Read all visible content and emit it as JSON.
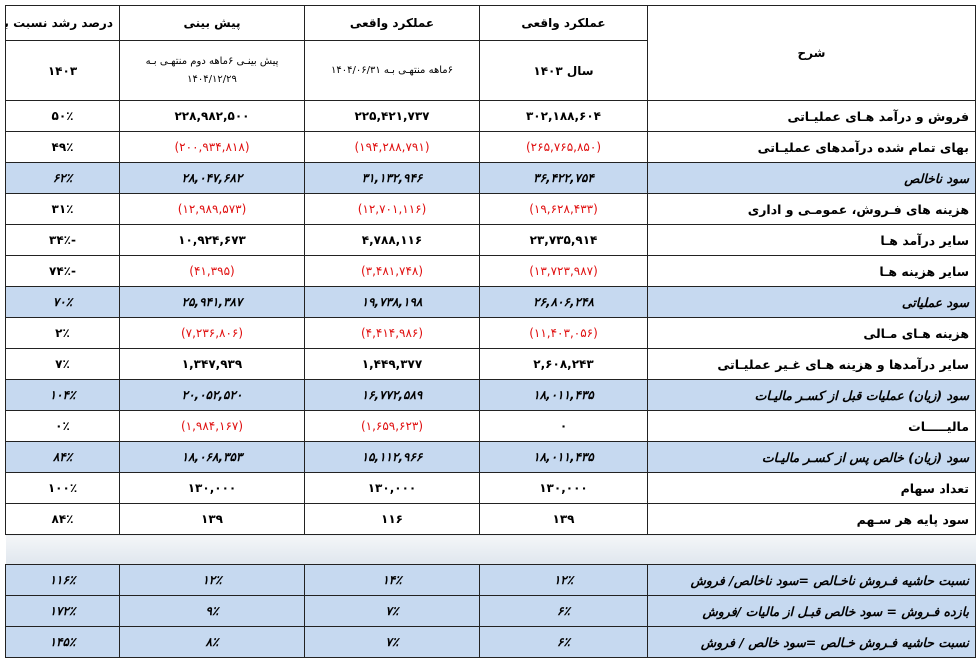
{
  "header": {
    "row1": [
      "شرح",
      "عملکرد واقعی",
      "عملکرد واقعی",
      "پیش بینی",
      "درصد رشد نسبت بـه"
    ],
    "row2": [
      "سال ۱۴۰۳",
      "۶ماهه منتهـی بـه ۱۴۰۴/۰۶/۳۱",
      "پیش بینـی ۶ماهه دوم منتهـی بـه ۱۴۰۴/۱۲/۲۹",
      "۱۴۰۳"
    ]
  },
  "rows": [
    {
      "label": "فروش و درآمد هـای عملیـاتی",
      "values": [
        "۳۰۲,۱۸۸,۶۰۴",
        "۲۲۵,۴۲۱,۷۳۷",
        "۲۲۸,۹۸۲,۵۰۰",
        "۵۰٪"
      ],
      "highlight": false
    },
    {
      "label": "بهای تمام شده درآمدهای عملیـاتی",
      "values": [
        "(۲۶۵,۷۶۵,۸۵۰)",
        "(۱۹۴,۲۸۸,۷۹۱)",
        "(۲۰۰,۹۳۴,۸۱۸)",
        "۴۹٪"
      ],
      "highlight": false
    },
    {
      "label": "سود ناخالص",
      "values": [
        "۳۶,۴۲۲,۷۵۴",
        "۳۱,۱۳۲,۹۴۶",
        "۲۸,۰۴۷,۶۸۲",
        "۶۲٪"
      ],
      "highlight": true
    },
    {
      "label": "هزینه های فـروش، عمومـی و اداری",
      "values": [
        "(۱۹,۶۲۸,۴۳۳)",
        "(۱۲,۷۰۱,۱۱۶)",
        "(۱۲,۹۸۹,۵۷۳)",
        "۳۱٪"
      ],
      "highlight": false
    },
    {
      "label": "سایر درآمد هـا",
      "values": [
        "۲۳,۷۳۵,۹۱۴",
        "۴,۷۸۸,۱۱۶",
        "۱۰,۹۲۴,۶۷۳",
        "۳۴٪-"
      ],
      "highlight": false
    },
    {
      "label": "سایر هزینه هـا",
      "values": [
        "(۱۳,۷۲۳,۹۸۷)",
        "(۳,۴۸۱,۷۴۸)",
        "(۴۱,۳۹۵)",
        "۷۴٪-"
      ],
      "highlight": false
    },
    {
      "label": "سود عملیاتی",
      "values": [
        "۲۶,۸۰۶,۲۴۸",
        "۱۹,۷۳۸,۱۹۸",
        "۲۵,۹۴۱,۳۸۷",
        "۷۰٪"
      ],
      "highlight": true
    },
    {
      "label": "هزینه هـای مـالی",
      "values": [
        "(۱۱,۴۰۳,۰۵۶)",
        "(۴,۴۱۴,۹۸۶)",
        "(۷,۲۳۶,۸۰۶)",
        "۲٪"
      ],
      "highlight": false
    },
    {
      "label": "سایر درآمدها و هزینه هـای غـیر عملیـاتی",
      "values": [
        "۲,۶۰۸,۲۴۳",
        "۱,۴۴۹,۳۷۷",
        "۱,۳۴۷,۹۳۹",
        "۷٪"
      ],
      "highlight": false
    },
    {
      "label": "سود (زیان) عملیات قبل از کسـر مالیـات",
      "values": [
        "۱۸,۰۱۱,۴۳۵",
        "۱۶,۷۷۲,۵۸۹",
        "۲۰,۰۵۲,۵۲۰",
        "۱۰۴٪"
      ],
      "highlight": true
    },
    {
      "label": "مالیـــــات",
      "values": [
        "۰",
        "(۱,۶۵۹,۶۲۳)",
        "(۱,۹۸۴,۱۶۷)",
        "۰٪"
      ],
      "highlight": false
    },
    {
      "label": "سود (زیان) خالص پس از کسـر مالیـات",
      "values": [
        "۱۸,۰۱۱,۴۳۵",
        "۱۵,۱۱۲,۹۶۶",
        "۱۸,۰۶۸,۳۵۳",
        "۸۴٪"
      ],
      "highlight": true
    },
    {
      "label": "تعداد سهام",
      "values": [
        "۱۳۰,۰۰۰",
        "۱۳۰,۰۰۰",
        "۱۳۰,۰۰۰",
        "۱۰۰٪"
      ],
      "highlight": false
    },
    {
      "label": "سود پایه هر سـهم",
      "values": [
        "۱۳۹",
        "۱۱۶",
        "۱۳۹",
        "۸۴٪"
      ],
      "highlight": false
    }
  ],
  "ratio_rows": [
    {
      "label": "نسبت حاشیه فـروش ناخـالص =سود ناخالص/ فروش",
      "values": [
        "۱۲٪",
        "۱۴٪",
        "۱۲٪",
        "۱۱۶٪"
      ],
      "highlight": true
    },
    {
      "label": "بازده فـروش = سود خالص قبـل از مالیات /فروش",
      "values": [
        "۶٪",
        "۷٪",
        "۹٪",
        "۱۷۲٪"
      ],
      "highlight": true
    },
    {
      "label": "نسبت حاشیه فـروش خـالص =سود خالص / فروش",
      "values": [
        "۶٪",
        "۷٪",
        "۸٪",
        "۱۴۵٪"
      ],
      "highlight": true
    }
  ]
}
